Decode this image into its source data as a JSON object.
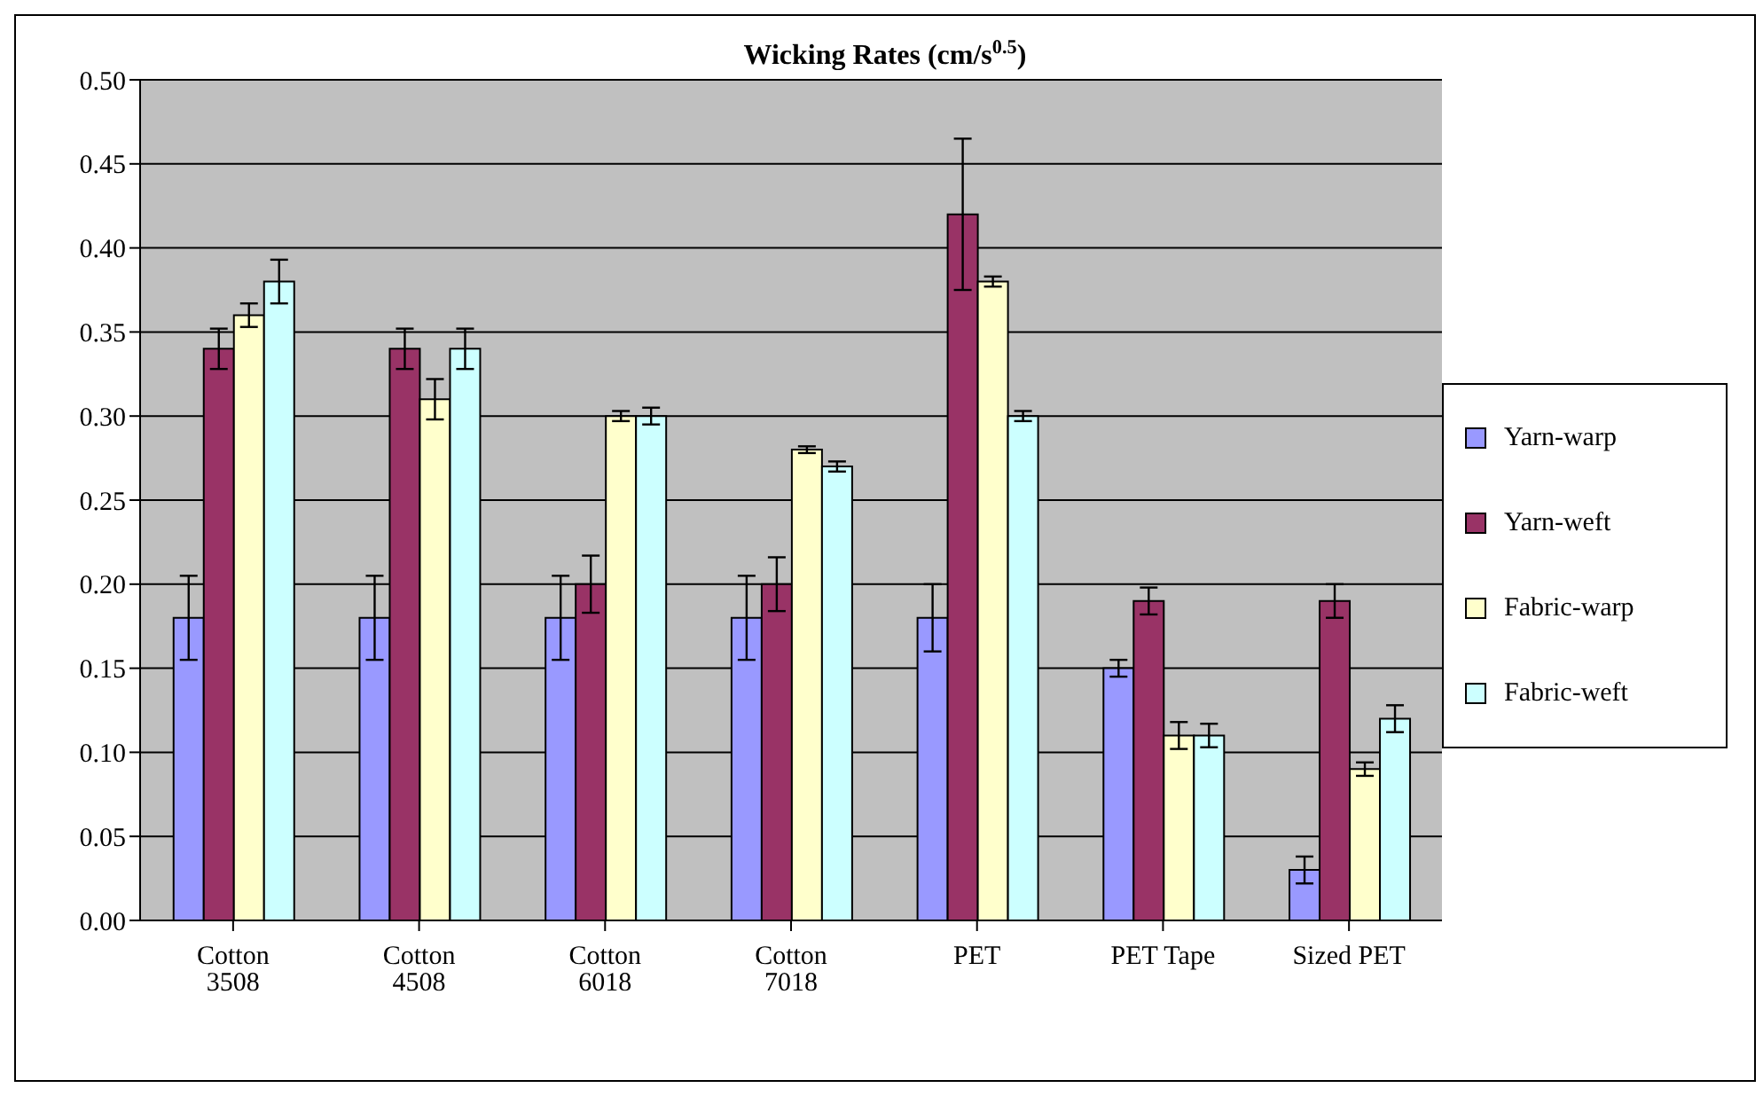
{
  "chart_data": {
    "type": "bar",
    "title": "Wicking Rates (cm/s$^{0.5}$)",
    "categories": [
      "Cotton 3508",
      "Cotton 4508",
      "Cotton 6018",
      "Cotton 7018",
      "PET",
      "PET Tape",
      "Sized PET"
    ],
    "series": [
      {
        "name": "Yarn-warp",
        "color": "#9999ff",
        "values": [
          0.18,
          0.18,
          0.18,
          0.18,
          0.18,
          0.15,
          0.03
        ],
        "errors": [
          0.025,
          0.025,
          0.025,
          0.025,
          0.02,
          0.005,
          0.008
        ]
      },
      {
        "name": "Yarn-weft",
        "color": "#993366",
        "values": [
          0.34,
          0.34,
          0.2,
          0.2,
          0.42,
          0.19,
          0.19
        ],
        "errors": [
          0.012,
          0.012,
          0.017,
          0.016,
          0.045,
          0.008,
          0.01
        ]
      },
      {
        "name": "Fabric-warp",
        "color": "#ffffcc",
        "values": [
          0.36,
          0.31,
          0.3,
          0.28,
          0.38,
          0.11,
          0.09
        ],
        "errors": [
          0.007,
          0.012,
          0.003,
          0.002,
          0.003,
          0.008,
          0.004
        ]
      },
      {
        "name": "Fabric-weft",
        "color": "#ccffff",
        "values": [
          0.38,
          0.34,
          0.3,
          0.27,
          0.3,
          0.11,
          0.12
        ],
        "errors": [
          0.013,
          0.012,
          0.005,
          0.003,
          0.003,
          0.007,
          0.008
        ]
      }
    ],
    "ylim": [
      0,
      0.5
    ],
    "yticks": [
      {
        "value": 0,
        "label": "0.00"
      },
      {
        "value": 0.05,
        "label": "0.05"
      },
      {
        "value": 0.1,
        "label": "0.10"
      },
      {
        "value": 0.15,
        "label": "0.15"
      },
      {
        "value": 0.2,
        "label": "0.20"
      },
      {
        "value": 0.25,
        "label": "0.25"
      },
      {
        "value": 0.3,
        "label": "0.30"
      },
      {
        "value": 0.35,
        "label": "0.35"
      },
      {
        "value": 0.4,
        "label": "0.40"
      },
      {
        "value": 0.45,
        "label": "0.45"
      },
      {
        "value": 0.5,
        "label": "0.50"
      }
    ],
    "grid": "y",
    "legend": "right"
  }
}
